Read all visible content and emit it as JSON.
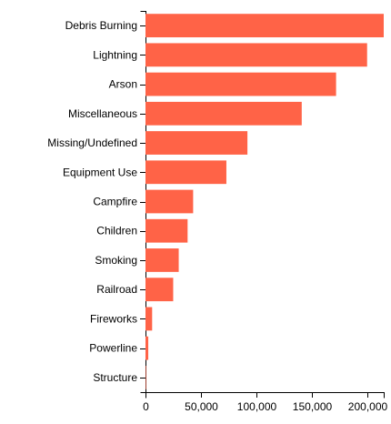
{
  "chart_data": {
    "type": "bar",
    "orientation": "horizontal",
    "categories": [
      "Debris Burning",
      "Lightning",
      "Arson",
      "Miscellaneous",
      "Missing/Undefined",
      "Equipment Use",
      "Campfire",
      "Children",
      "Smoking",
      "Railroad",
      "Fireworks",
      "Powerline",
      "Structure"
    ],
    "values": [
      215000,
      200000,
      172000,
      141000,
      92000,
      73000,
      43000,
      38000,
      30000,
      25000,
      6000,
      2500,
      500
    ],
    "xlim": [
      0,
      215000
    ],
    "x_ticks": [
      0,
      50000,
      100000,
      150000,
      200000
    ],
    "x_tick_labels": [
      "0",
      "50,000",
      "100,000",
      "150,000",
      "200,000"
    ],
    "bar_color": "#ff6347",
    "grid": false,
    "title": "",
    "xlabel": "",
    "ylabel": ""
  }
}
